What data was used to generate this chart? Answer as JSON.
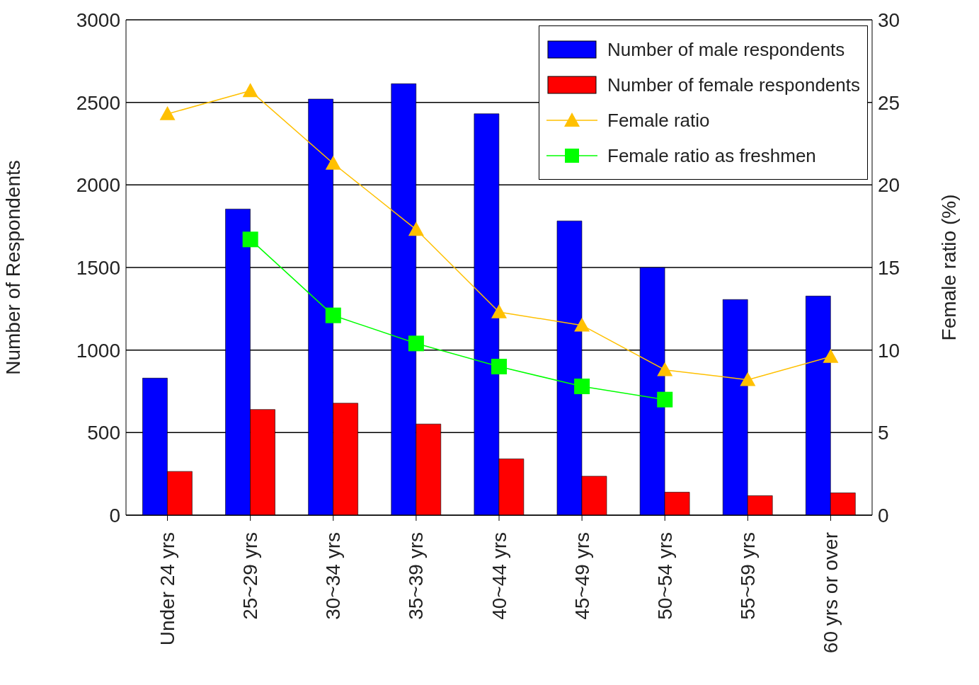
{
  "chart_data": {
    "type": "bar",
    "ylabel": "Number of Respondents",
    "y2label": "Female ratio (%)",
    "categories": [
      "Under 24 yrs",
      "25~29 yrs",
      "30~34 yrs",
      "35~39 yrs",
      "40~44 yrs",
      "45~49 yrs",
      "50~54 yrs",
      "55~59 yrs",
      "60 yrs or over"
    ],
    "series": [
      {
        "name": "Number of male respondents",
        "color": "#0000ff",
        "values": [
          830,
          1854,
          2520,
          2613,
          2431,
          1782,
          1500,
          1306,
          1327
        ]
      },
      {
        "name": "Number of female respondents",
        "color": "#ff0000",
        "values": [
          265,
          640,
          678,
          552,
          341,
          236,
          139,
          118,
          135
        ]
      },
      {
        "name": "Female ratio",
        "type": "line",
        "axis": "y2",
        "marker": "triangle",
        "color": "#ffc000",
        "values": [
          24.3,
          25.7,
          21.3,
          17.3,
          12.3,
          11.5,
          8.8,
          8.2,
          9.6
        ]
      },
      {
        "name": "Female ratio as freshmen",
        "type": "line",
        "axis": "y2",
        "marker": "square",
        "color": "#00ff00",
        "values": [
          null,
          16.7,
          12.1,
          10.4,
          9.0,
          7.8,
          7.0,
          null,
          null
        ]
      }
    ],
    "ylim": [
      0,
      3000
    ],
    "yticks": [
      0,
      500,
      1000,
      1500,
      2000,
      2500,
      3000
    ],
    "y2lim": [
      0,
      30
    ],
    "y2ticks": [
      0,
      5,
      10,
      15,
      20,
      25,
      30
    ],
    "grid": "y",
    "legend": "top right"
  }
}
